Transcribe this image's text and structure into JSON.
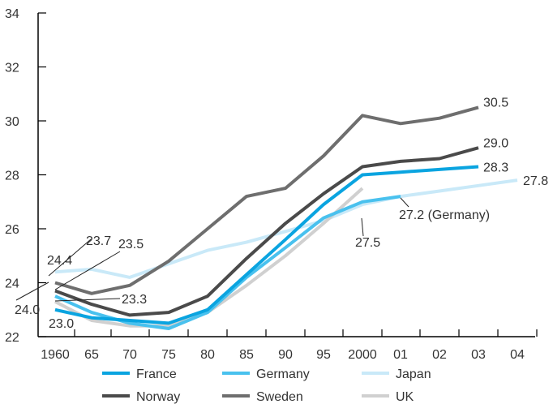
{
  "chart_data": {
    "type": "line",
    "title": "",
    "xlabel": "",
    "ylabel": "",
    "ylim": [
      22,
      34
    ],
    "yticks": [
      22,
      24,
      26,
      28,
      30,
      32,
      34
    ],
    "x_tick_labels": [
      "1960",
      "65",
      "70",
      "75",
      "80",
      "85",
      "90",
      "95",
      "2000",
      "01",
      "02",
      "03",
      "04"
    ],
    "grid": false,
    "legend_position": "bottom",
    "series": [
      {
        "name": "France",
        "color": "#0aa4e0",
        "points": [
          [
            "1960",
            23.0
          ],
          [
            "65",
            22.7
          ],
          [
            "70",
            22.6
          ],
          [
            "75",
            22.5
          ],
          [
            "80",
            23.0
          ],
          [
            "85",
            24.3
          ],
          [
            "90",
            25.6
          ],
          [
            "95",
            26.9
          ],
          [
            "2000",
            28.0
          ],
          [
            "01",
            28.1
          ],
          [
            "02",
            28.2
          ],
          [
            "03",
            28.3
          ]
        ]
      },
      {
        "name": "Germany",
        "color": "#49c1ee",
        "points": [
          [
            "1960",
            23.5
          ],
          [
            "65",
            22.9
          ],
          [
            "70",
            22.5
          ],
          [
            "75",
            22.3
          ],
          [
            "80",
            22.9
          ],
          [
            "85",
            24.2
          ],
          [
            "90",
            25.3
          ],
          [
            "95",
            26.4
          ],
          [
            "2000",
            27.0
          ],
          [
            "01",
            27.2
          ]
        ]
      },
      {
        "name": "Japan",
        "color": "#c9e9f8",
        "points": [
          [
            "1960",
            24.4
          ],
          [
            "65",
            24.5
          ],
          [
            "70",
            24.2
          ],
          [
            "75",
            24.7
          ],
          [
            "80",
            25.2
          ],
          [
            "85",
            25.5
          ],
          [
            "90",
            25.9
          ],
          [
            "95",
            26.3
          ],
          [
            "2000",
            26.9
          ],
          [
            "01",
            27.2
          ],
          [
            "02",
            27.4
          ],
          [
            "03",
            27.6
          ],
          [
            "04",
            27.8
          ]
        ]
      },
      {
        "name": "Norway",
        "color": "#4a4a4a",
        "points": [
          [
            "1960",
            23.7
          ],
          [
            "65",
            23.2
          ],
          [
            "70",
            22.8
          ],
          [
            "75",
            22.9
          ],
          [
            "80",
            23.5
          ],
          [
            "85",
            24.9
          ],
          [
            "90",
            26.2
          ],
          [
            "95",
            27.3
          ],
          [
            "2000",
            28.3
          ],
          [
            "01",
            28.5
          ],
          [
            "02",
            28.6
          ],
          [
            "03",
            29.0
          ]
        ]
      },
      {
        "name": "Sweden",
        "color": "#6e6e6e",
        "points": [
          [
            "1960",
            24.0
          ],
          [
            "65",
            23.6
          ],
          [
            "70",
            23.9
          ],
          [
            "75",
            24.8
          ],
          [
            "80",
            26.0
          ],
          [
            "85",
            27.2
          ],
          [
            "90",
            27.5
          ],
          [
            "95",
            28.7
          ],
          [
            "2000",
            30.2
          ],
          [
            "01",
            29.9
          ],
          [
            "02",
            30.1
          ],
          [
            "03",
            30.5
          ]
        ]
      },
      {
        "name": "UK",
        "color": "#d0d0d0",
        "points": [
          [
            "1960",
            23.3
          ],
          [
            "65",
            22.6
          ],
          [
            "70",
            22.4
          ],
          [
            "75",
            22.4
          ],
          [
            "80",
            22.9
          ],
          [
            "85",
            23.9
          ],
          [
            "90",
            25.0
          ],
          [
            "95",
            26.2
          ],
          [
            "2000",
            27.5
          ]
        ]
      }
    ],
    "annotations": [
      {
        "text": "30.5",
        "series": "Sweden",
        "at": "03"
      },
      {
        "text": "29.0",
        "series": "Norway",
        "at": "03"
      },
      {
        "text": "28.3",
        "series": "France",
        "at": "03"
      },
      {
        "text": "27.8",
        "series": "Japan",
        "at": "04"
      },
      {
        "text": "27.5",
        "series": "UK",
        "at": "2000"
      },
      {
        "text": "27.2 (Germany)",
        "series": "Germany",
        "at": "01"
      },
      {
        "text": "24.4",
        "series": "Japan",
        "at": "1960"
      },
      {
        "text": "23.7",
        "series": "Norway",
        "at": "1960"
      },
      {
        "text": "23.5",
        "series": "Germany",
        "at": "1960"
      },
      {
        "text": "23.3",
        "series": "UK",
        "at": "1960"
      },
      {
        "text": "24.0",
        "series": "Sweden",
        "at": "1960"
      },
      {
        "text": "23.0",
        "series": "France",
        "at": "1960"
      }
    ]
  }
}
